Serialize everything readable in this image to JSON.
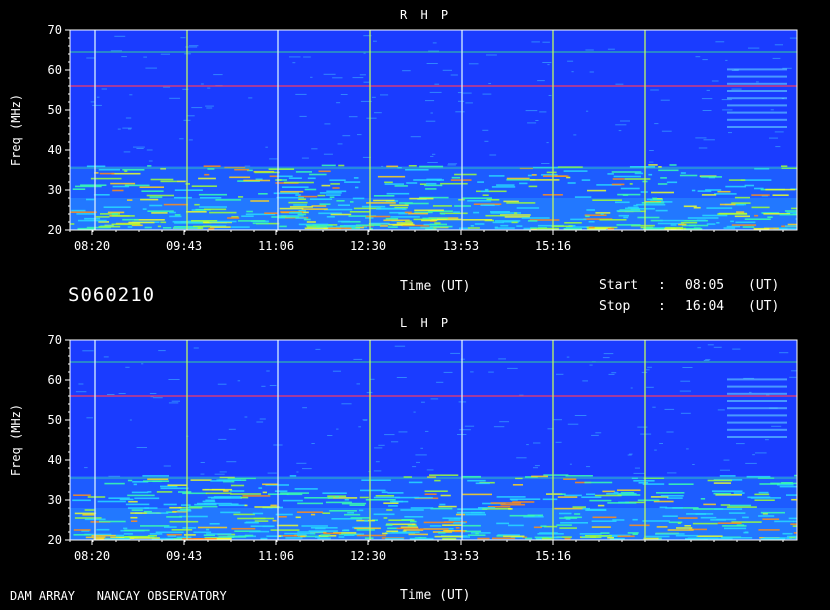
{
  "chart_data": [
    {
      "type": "heatmap",
      "title": "R H P",
      "ylabel": "Freq (MHz)",
      "xlabel": "Time (UT)",
      "ylim": [
        20,
        70
      ],
      "y_ticks": [
        20,
        30,
        40,
        50,
        60,
        70
      ],
      "x_ticks": [
        "08:20",
        "09:43",
        "11:06",
        "12:30",
        "13:53",
        "15:16"
      ],
      "time_range": [
        "08:05",
        "16:04"
      ],
      "background_color": "#1a3cff"
    },
    {
      "type": "heatmap",
      "title": "L H P",
      "ylabel": "Freq (MHz)",
      "xlabel": "Time (UT)",
      "ylim": [
        20,
        70
      ],
      "y_ticks": [
        20,
        30,
        40,
        50,
        60,
        70
      ],
      "x_ticks": [
        "08:20",
        "09:43",
        "11:06",
        "12:30",
        "13:53",
        "15:16"
      ],
      "time_range": [
        "08:05",
        "16:04"
      ],
      "background_color": "#1a3cff"
    }
  ],
  "header": {
    "observation_id": "S060210",
    "start_label": "Start",
    "stop_label": "Stop",
    "colon": ":",
    "start_time": "08:05",
    "stop_time": "16:04",
    "unit": "(UT)"
  },
  "footer": {
    "source": "DAM ARRAY   NANCAY OBSERVATORY"
  }
}
